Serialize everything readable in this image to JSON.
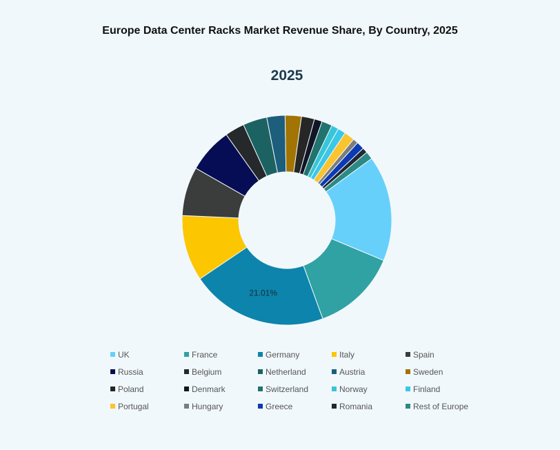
{
  "chart_data": {
    "type": "pie",
    "title": "Europe Data Center Racks Market Revenue Share, By Country, 2025",
    "subtitle": "2025",
    "donut": true,
    "legend_position": "bottom",
    "categories": [
      "UK",
      "France",
      "Germany",
      "Italy",
      "Spain",
      "Russia",
      "Belgium",
      "Netherland",
      "Austria",
      "Sweden",
      "Poland",
      "Denmark",
      "Switzerland",
      "Norway",
      "Finland",
      "Portugal",
      "Hungary",
      "Greece",
      "Romania",
      "Rest of Europe"
    ],
    "values": [
      16.2,
      13.1,
      21.01,
      10.1,
      7.5,
      6.9,
      3.0,
      3.7,
      2.8,
      2.5,
      2.0,
      1.2,
      1.6,
      1.1,
      1.2,
      1.6,
      0.8,
      1.2,
      0.8,
      1.2
    ],
    "colors": [
      "#66d0fb",
      "#30a2a3",
      "#0c84ac",
      "#fcc600",
      "#3b3c3c",
      "#060d54",
      "#25292b",
      "#1d6262",
      "#1c5e7c",
      "#a27404",
      "#262626",
      "#121526",
      "#21736f",
      "#37c6d8",
      "#3ac7e9",
      "#f9c430",
      "#7c7c7c",
      "#0a3ab4",
      "#232633",
      "#2c8a85"
    ],
    "data_labels": [
      {
        "category": "Germany",
        "text": "21.01%"
      }
    ]
  }
}
